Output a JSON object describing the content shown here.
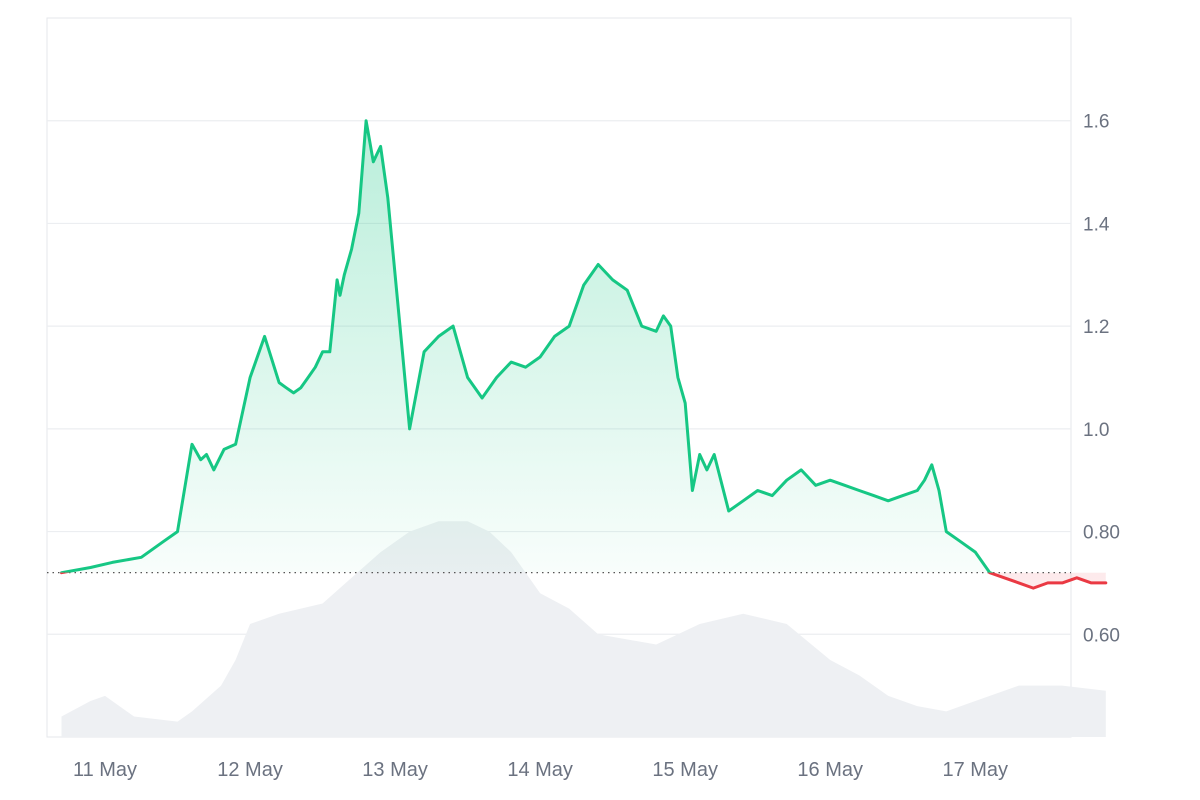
{
  "chart_data": {
    "type": "area",
    "x_ticks": [
      "11 May",
      "12 May",
      "13 May",
      "14 May",
      "15 May",
      "16 May",
      "17 May"
    ],
    "y_ticks": [
      "0.60",
      "0.80",
      "1.0",
      "1.2",
      "1.4",
      "1.6"
    ],
    "ylim": [
      0.4,
      1.8
    ],
    "grid": true,
    "baseline": 0.72,
    "colors": {
      "up": "#16c784",
      "down": "#ea3943",
      "up_fill": "#16c784",
      "down_fill": "#ea3943",
      "volume": "#eef0f3",
      "grid": "#eceef1",
      "baseline": "#555555",
      "axis_text": "#6b7280",
      "frame": "#e5e7eb"
    },
    "series": [
      {
        "x": [
          10.7,
          10.9,
          11.05,
          11.25,
          11.4,
          11.5,
          11.6,
          11.66,
          11.7,
          11.75,
          11.82,
          11.9,
          12.0,
          12.1,
          12.2,
          12.25,
          12.3,
          12.35,
          12.4,
          12.45,
          12.5,
          12.55,
          12.6,
          12.62,
          12.65,
          12.7,
          12.75,
          12.8,
          12.85,
          12.9,
          12.95,
          13.0,
          13.05,
          13.1,
          13.2,
          13.3,
          13.4,
          13.5,
          13.6,
          13.7,
          13.8,
          13.9,
          14.0,
          14.1,
          14.2,
          14.3,
          14.4,
          14.5,
          14.6,
          14.7,
          14.8,
          14.85,
          14.9,
          14.95,
          15.0,
          15.05,
          15.1,
          15.15,
          15.2,
          15.3,
          15.4,
          15.5,
          15.6,
          15.7,
          15.8,
          15.9,
          16.0,
          16.1,
          16.2,
          16.3,
          16.4,
          16.5,
          16.6,
          16.65,
          16.7,
          16.75,
          16.8,
          16.9,
          17.0,
          17.1,
          17.2,
          17.3,
          17.4,
          17.5,
          17.6,
          17.7,
          17.8,
          17.9
        ],
        "y": [
          0.72,
          0.73,
          0.74,
          0.75,
          0.78,
          0.8,
          0.97,
          0.94,
          0.95,
          0.92,
          0.96,
          0.97,
          1.1,
          1.18,
          1.09,
          1.08,
          1.07,
          1.08,
          1.1,
          1.12,
          1.15,
          1.15,
          1.29,
          1.26,
          1.3,
          1.35,
          1.42,
          1.6,
          1.52,
          1.55,
          1.45,
          1.3,
          1.15,
          1.0,
          1.15,
          1.18,
          1.2,
          1.1,
          1.06,
          1.1,
          1.13,
          1.12,
          1.14,
          1.18,
          1.2,
          1.28,
          1.32,
          1.29,
          1.27,
          1.2,
          1.19,
          1.22,
          1.2,
          1.1,
          1.05,
          0.88,
          0.95,
          0.92,
          0.95,
          0.84,
          0.86,
          0.88,
          0.87,
          0.9,
          0.92,
          0.89,
          0.9,
          0.89,
          0.88,
          0.87,
          0.86,
          0.87,
          0.88,
          0.9,
          0.93,
          0.88,
          0.8,
          0.78,
          0.76,
          0.72,
          0.71,
          0.7,
          0.69,
          0.7,
          0.7,
          0.71,
          0.7,
          0.7
        ]
      }
    ],
    "volume": {
      "x": [
        10.7,
        10.9,
        11.0,
        11.2,
        11.5,
        11.6,
        11.8,
        11.9,
        12.0,
        12.2,
        12.5,
        12.7,
        12.9,
        13.0,
        13.1,
        13.3,
        13.5,
        13.65,
        13.8,
        14.0,
        14.2,
        14.4,
        14.8,
        15.1,
        15.4,
        15.7,
        16.0,
        16.2,
        16.4,
        16.6,
        16.8,
        17.0,
        17.3,
        17.6,
        17.9
      ],
      "y": [
        0.44,
        0.47,
        0.48,
        0.44,
        0.43,
        0.45,
        0.5,
        0.55,
        0.62,
        0.64,
        0.66,
        0.71,
        0.76,
        0.78,
        0.8,
        0.82,
        0.82,
        0.8,
        0.76,
        0.68,
        0.65,
        0.6,
        0.58,
        0.62,
        0.64,
        0.62,
        0.55,
        0.52,
        0.48,
        0.46,
        0.45,
        0.47,
        0.5,
        0.5,
        0.49
      ]
    }
  }
}
